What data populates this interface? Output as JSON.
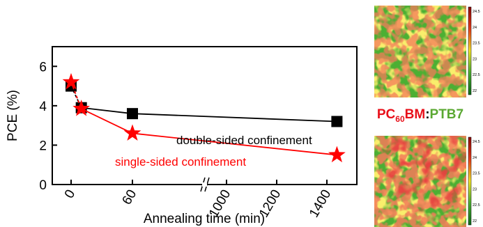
{
  "chart_data": {
    "type": "line",
    "xlabel": "Annealing time (min)",
    "ylabel": "PCE (%)",
    "ylim": [
      0,
      7
    ],
    "yticks": [
      0,
      2,
      4,
      6
    ],
    "x_scale": "broken",
    "x_segment_before_break": [
      0,
      60
    ],
    "x_segment_after_break": [
      1000,
      1400
    ],
    "xticks": [
      0,
      60,
      1000,
      1200,
      1400
    ],
    "grid": false,
    "series": [
      {
        "name": "double-sided confinement",
        "color": "#000000",
        "marker": "square",
        "x": [
          0,
          10,
          60,
          1440
        ],
        "y": [
          5.0,
          3.9,
          3.6,
          3.2
        ]
      },
      {
        "name": "single-sided confinement",
        "color": "#ff0000",
        "marker": "star",
        "x": [
          0,
          10,
          60,
          1440
        ],
        "y": [
          5.2,
          3.85,
          2.6,
          1.5
        ]
      }
    ]
  },
  "maps": {
    "label_part1": "PC",
    "label_sub": "60",
    "label_part2": "BM",
    "label_sep": ":",
    "label_part3": "PTB7",
    "label_color_pcbm": "#e8101a",
    "label_color_ptb7": "#5aa832",
    "colorbar_ticks": [
      "24.5",
      "24",
      "23.5",
      "23",
      "22.5",
      "22"
    ],
    "colorbar_colors": [
      "#8b0a0a",
      "#e83b1a",
      "#f0e22a",
      "#4caf33",
      "#0f6b1a"
    ]
  }
}
